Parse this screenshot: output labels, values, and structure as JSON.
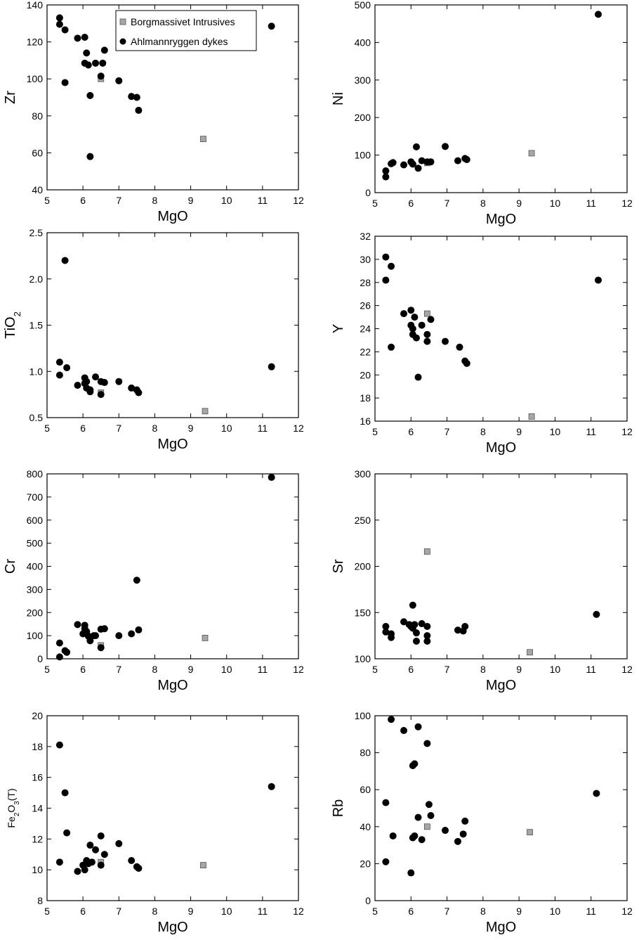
{
  "legend": {
    "squares": "Borgmassivet Intrusives",
    "circles": "Ahlmannryggen dykes"
  },
  "colors": {
    "dyke": "#000000",
    "intrusive": "#a6a6a6"
  },
  "chart_data": [
    {
      "id": "zr",
      "type": "scatter",
      "xlabel": "MgO",
      "ylabel": "Zr",
      "xlim": [
        5,
        12
      ],
      "ylim": [
        40,
        140
      ],
      "xticks": [
        "5",
        "6",
        "7",
        "8",
        "9",
        "10",
        "11",
        "12"
      ],
      "yticks": [
        "40",
        "60",
        "80",
        "100",
        "120",
        "140"
      ],
      "legend": "top-left",
      "series": [
        {
          "name": "Ahlmannryggen dykes",
          "marker": "circle",
          "points": [
            [
              5.35,
              133
            ],
            [
              5.35,
              129.5
            ],
            [
              5.5,
              126.5
            ],
            [
              5.5,
              98
            ],
            [
              5.85,
              122
            ],
            [
              6.05,
              122.5
            ],
            [
              6.1,
              114
            ],
            [
              6.05,
              108.5
            ],
            [
              6.15,
              107.5
            ],
            [
              6.35,
              108.5
            ],
            [
              6.55,
              108.5
            ],
            [
              6.5,
              101.5
            ],
            [
              6.6,
              115.5
            ],
            [
              6.2,
              91
            ],
            [
              6.2,
              58
            ],
            [
              7,
              99
            ],
            [
              7.35,
              90.5
            ],
            [
              7.5,
              90
            ],
            [
              7.55,
              83
            ],
            [
              11.25,
              128.5
            ]
          ]
        },
        {
          "name": "Borgmassivet Intrusives",
          "marker": "square",
          "points": [
            [
              6.5,
              100
            ],
            [
              9.35,
              67.5
            ]
          ]
        }
      ]
    },
    {
      "id": "ni",
      "type": "scatter",
      "xlabel": "MgO",
      "ylabel": "Ni",
      "xlim": [
        5,
        12
      ],
      "ylim": [
        0,
        500
      ],
      "xticks": [
        "5",
        "6",
        "7",
        "8",
        "9",
        "10",
        "11",
        "12"
      ],
      "yticks": [
        "0",
        "100",
        "200",
        "300",
        "400",
        "500"
      ],
      "series": [
        {
          "name": "Ahlmannryggen dykes",
          "marker": "circle",
          "points": [
            [
              5.3,
              58
            ],
            [
              5.3,
              42
            ],
            [
              5.45,
              77
            ],
            [
              5.5,
              80
            ],
            [
              5.8,
              74
            ],
            [
              6,
              82
            ],
            [
              6.05,
              76
            ],
            [
              6.15,
              122
            ],
            [
              6.2,
              65
            ],
            [
              6.3,
              85
            ],
            [
              6.45,
              82
            ],
            [
              6.55,
              82
            ],
            [
              6.95,
              123
            ],
            [
              7.3,
              85
            ],
            [
              7.5,
              91
            ],
            [
              7.55,
              88
            ],
            [
              11.2,
              475
            ]
          ]
        },
        {
          "name": "Borgmassivet Intrusives",
          "marker": "square",
          "points": [
            [
              6.45,
              79
            ],
            [
              9.35,
              105
            ]
          ]
        }
      ]
    },
    {
      "id": "tio2",
      "type": "scatter",
      "xlabel": "MgO",
      "ylabel": "TiO",
      "ylabel_sub": "2",
      "xlim": [
        5,
        12
      ],
      "ylim": [
        0.5,
        2.5
      ],
      "xticks": [
        "5",
        "6",
        "7",
        "8",
        "9",
        "10",
        "11",
        "12"
      ],
      "yticks": [
        "0.5",
        "1.0",
        "1.5",
        "2.0",
        "2.5"
      ],
      "series": [
        {
          "name": "Ahlmannryggen dykes",
          "marker": "circle",
          "points": [
            [
              5.35,
              1.1
            ],
            [
              5.35,
              0.96
            ],
            [
              5.5,
              2.2
            ],
            [
              5.55,
              1.04
            ],
            [
              5.85,
              0.85
            ],
            [
              6.05,
              0.93
            ],
            [
              6.05,
              0.87
            ],
            [
              6.1,
              0.82
            ],
            [
              6.1,
              0.89
            ],
            [
              6.2,
              0.8
            ],
            [
              6.2,
              0.78
            ],
            [
              6.35,
              0.94
            ],
            [
              6.5,
              0.89
            ],
            [
              6.6,
              0.88
            ],
            [
              6.5,
              0.75
            ],
            [
              7,
              0.89
            ],
            [
              7.35,
              0.82
            ],
            [
              7.5,
              0.8
            ],
            [
              7.55,
              0.77
            ],
            [
              11.25,
              1.05
            ]
          ]
        },
        {
          "name": "Borgmassivet Intrusives",
          "marker": "square",
          "points": [
            [
              6.5,
              0.77
            ],
            [
              9.4,
              0.57
            ]
          ]
        }
      ]
    },
    {
      "id": "y",
      "type": "scatter",
      "xlabel": "MgO",
      "ylabel": "Y",
      "xlim": [
        5,
        12
      ],
      "ylim": [
        16,
        32
      ],
      "xticks": [
        "5",
        "6",
        "7",
        "8",
        "9",
        "10",
        "11",
        "12"
      ],
      "yticks": [
        "16",
        "18",
        "20",
        "22",
        "24",
        "26",
        "28",
        "30",
        "32"
      ],
      "series": [
        {
          "name": "Ahlmannryggen dykes",
          "marker": "circle",
          "points": [
            [
              5.3,
              30.2
            ],
            [
              5.3,
              28.2
            ],
            [
              5.45,
              29.4
            ],
            [
              5.45,
              22.4
            ],
            [
              5.8,
              25.3
            ],
            [
              6,
              25.6
            ],
            [
              6,
              24.3
            ],
            [
              6.05,
              24
            ],
            [
              6.05,
              23.5
            ],
            [
              6.1,
              25
            ],
            [
              6.15,
              23.2
            ],
            [
              6.3,
              24.3
            ],
            [
              6.45,
              23.5
            ],
            [
              6.45,
              22.9
            ],
            [
              6.55,
              24.8
            ],
            [
              6.2,
              19.8
            ],
            [
              6.95,
              22.9
            ],
            [
              7.35,
              22.4
            ],
            [
              7.5,
              21.2
            ],
            [
              7.55,
              21
            ],
            [
              11.2,
              28.2
            ]
          ]
        },
        {
          "name": "Borgmassivet Intrusives",
          "marker": "square",
          "points": [
            [
              6.45,
              25.3
            ],
            [
              9.35,
              16.4
            ]
          ]
        }
      ]
    },
    {
      "id": "cr",
      "type": "scatter",
      "xlabel": "MgO",
      "ylabel": "Cr",
      "xlim": [
        5,
        12
      ],
      "ylim": [
        0,
        800
      ],
      "xticks": [
        "5",
        "6",
        "7",
        "8",
        "9",
        "10",
        "11",
        "12"
      ],
      "yticks": [
        "0",
        "100",
        "200",
        "300",
        "400",
        "500",
        "600",
        "700",
        "800"
      ],
      "series": [
        {
          "name": "Ahlmannryggen dykes",
          "marker": "circle",
          "points": [
            [
              5.35,
              68
            ],
            [
              5.35,
              8
            ],
            [
              5.5,
              35
            ],
            [
              5.55,
              28
            ],
            [
              5.85,
              148
            ],
            [
              6,
              108
            ],
            [
              6.05,
              145
            ],
            [
              6.05,
              130
            ],
            [
              6.1,
              118
            ],
            [
              6.15,
              98
            ],
            [
              6.2,
              78
            ],
            [
              6.3,
              100
            ],
            [
              6.35,
              100
            ],
            [
              6.5,
              128
            ],
            [
              6.6,
              130
            ],
            [
              6.5,
              48
            ],
            [
              7,
              100
            ],
            [
              7.35,
              108
            ],
            [
              7.5,
              340
            ],
            [
              7.55,
              125
            ],
            [
              11.25,
              785
            ]
          ]
        },
        {
          "name": "Borgmassivet Intrusives",
          "marker": "square",
          "points": [
            [
              6.5,
              58
            ],
            [
              9.4,
              90
            ]
          ]
        }
      ]
    },
    {
      "id": "sr",
      "type": "scatter",
      "xlabel": "MgO",
      "ylabel": "Sr",
      "xlim": [
        5,
        12
      ],
      "ylim": [
        100,
        300
      ],
      "xticks": [
        "5",
        "6",
        "7",
        "8",
        "9",
        "10",
        "11",
        "12"
      ],
      "yticks": [
        "100",
        "150",
        "200",
        "250",
        "300"
      ],
      "series": [
        {
          "name": "Ahlmannryggen dykes",
          "marker": "circle",
          "points": [
            [
              5.3,
              135
            ],
            [
              5.3,
              129
            ],
            [
              5.45,
              127
            ],
            [
              5.45,
              123
            ],
            [
              5.8,
              140
            ],
            [
              5.95,
              137
            ],
            [
              6,
              135
            ],
            [
              6.05,
              158
            ],
            [
              6.05,
              133
            ],
            [
              6.1,
              137
            ],
            [
              6.15,
              128
            ],
            [
              6.15,
              119
            ],
            [
              6.3,
              138
            ],
            [
              6.45,
              135
            ],
            [
              6.45,
              125
            ],
            [
              6.45,
              119
            ],
            [
              7.3,
              131
            ],
            [
              7.45,
              130
            ],
            [
              7.5,
              135
            ],
            [
              11.15,
              148
            ]
          ]
        },
        {
          "name": "Borgmassivet Intrusives",
          "marker": "square",
          "points": [
            [
              6.45,
              216
            ],
            [
              9.3,
              107
            ]
          ]
        }
      ]
    },
    {
      "id": "fe2o3",
      "type": "scatter",
      "xlabel": "MgO",
      "ylabel": "Fe2O3(T)",
      "ylabel_parts": [
        "Fe",
        "2",
        "O",
        "3",
        "(T)"
      ],
      "xlim": [
        5,
        12
      ],
      "ylim": [
        8,
        20
      ],
      "xticks": [
        "5",
        "6",
        "7",
        "8",
        "9",
        "10",
        "11",
        "12"
      ],
      "yticks": [
        "8",
        "10",
        "12",
        "14",
        "16",
        "18",
        "20"
      ],
      "series": [
        {
          "name": "Ahlmannryggen dykes",
          "marker": "circle",
          "points": [
            [
              5.35,
              18.1
            ],
            [
              5.35,
              10.5
            ],
            [
              5.5,
              15
            ],
            [
              5.55,
              12.4
            ],
            [
              5.85,
              9.9
            ],
            [
              6,
              10.3
            ],
            [
              6.05,
              10
            ],
            [
              6.1,
              10.6
            ],
            [
              6.15,
              10.4
            ],
            [
              6.2,
              11.6
            ],
            [
              6.25,
              10.5
            ],
            [
              6.35,
              11.3
            ],
            [
              6.5,
              12.2
            ],
            [
              6.6,
              11
            ],
            [
              6.5,
              10.3
            ],
            [
              7,
              11.7
            ],
            [
              7.35,
              10.6
            ],
            [
              7.5,
              10.2
            ],
            [
              7.55,
              10.1
            ],
            [
              11.25,
              15.4
            ]
          ]
        },
        {
          "name": "Borgmassivet Intrusives",
          "marker": "square",
          "points": [
            [
              6.5,
              10.5
            ],
            [
              9.35,
              10.3
            ]
          ]
        }
      ]
    },
    {
      "id": "rb",
      "type": "scatter",
      "xlabel": "MgO",
      "ylabel": "Rb",
      "xlim": [
        5,
        12
      ],
      "ylim": [
        0,
        100
      ],
      "xticks": [
        "5",
        "6",
        "7",
        "8",
        "9",
        "10",
        "11",
        "12"
      ],
      "yticks": [
        "0",
        "20",
        "40",
        "60",
        "80",
        "100"
      ],
      "series": [
        {
          "name": "Ahlmannryggen dykes",
          "marker": "circle",
          "points": [
            [
              5.3,
              53
            ],
            [
              5.3,
              21
            ],
            [
              5.45,
              98
            ],
            [
              5.5,
              35
            ],
            [
              5.8,
              92
            ],
            [
              6,
              15
            ],
            [
              6.05,
              34
            ],
            [
              6.05,
              73
            ],
            [
              6.1,
              74
            ],
            [
              6.1,
              35
            ],
            [
              6.2,
              94
            ],
            [
              6.2,
              45
            ],
            [
              6.3,
              33
            ],
            [
              6.45,
              85
            ],
            [
              6.5,
              52
            ],
            [
              6.55,
              46
            ],
            [
              6.95,
              38
            ],
            [
              7.3,
              32
            ],
            [
              7.45,
              36
            ],
            [
              7.5,
              43
            ],
            [
              11.15,
              58
            ]
          ]
        },
        {
          "name": "Borgmassivet Intrusives",
          "marker": "square",
          "points": [
            [
              6.45,
              40
            ],
            [
              9.3,
              37
            ]
          ]
        }
      ]
    }
  ]
}
